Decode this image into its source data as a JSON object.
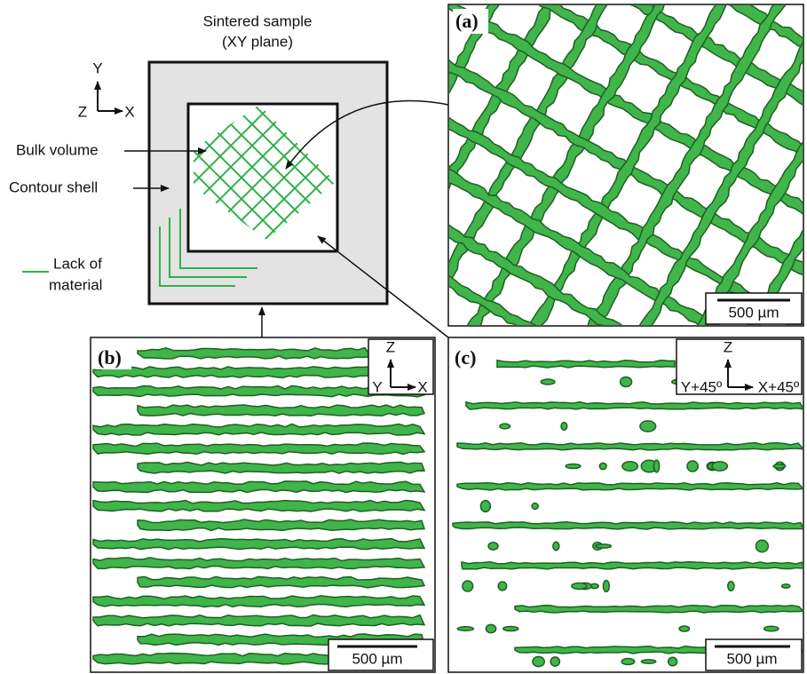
{
  "schematic": {
    "title": [
      "Sintered sample",
      "(XY plane)"
    ],
    "axes": {
      "up": "Y",
      "out": "Z",
      "right": "X"
    },
    "labels": [
      "Bulk volume",
      "Contour shell"
    ],
    "legend": [
      "Lack of",
      "material"
    ]
  },
  "panels": [
    {
      "label": "(a)",
      "scale_bar": "500 µm"
    },
    {
      "label": "(b)",
      "scale_bar": "500 µm",
      "axes": {
        "up": "Z",
        "left": "Y",
        "right": "X"
      }
    },
    {
      "label": "(c)",
      "scale_bar": "500 µm",
      "axes": {
        "up": "Z",
        "left": "Y+45º",
        "right": "X+45º"
      }
    }
  ]
}
